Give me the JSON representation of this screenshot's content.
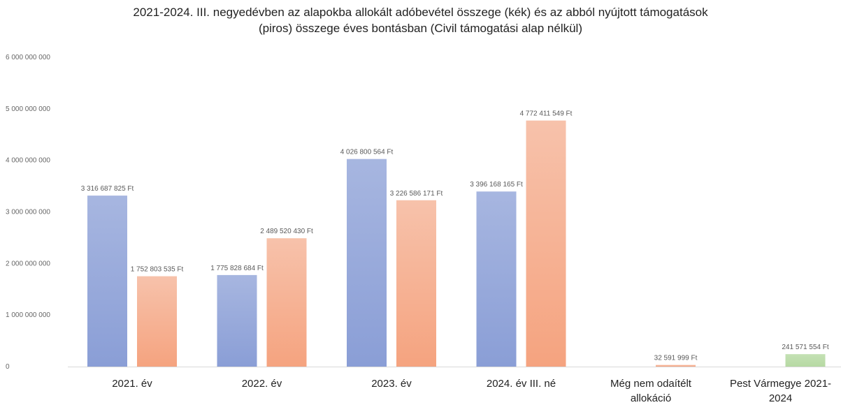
{
  "chart_data": {
    "type": "bar",
    "title_lines": [
      "2021-2024. III. negyedévben az alapokba allokált adóbevétel összege (kék) és az abból nyújtott támogatások",
      "(piros) összege éves bontásban (Civil támogatási alap nélkül)"
    ],
    "categories": [
      [
        "2021. év"
      ],
      [
        "2022. év"
      ],
      [
        "2023. év"
      ],
      [
        "2024. év III. né"
      ],
      [
        "Még nem odaítélt",
        "allokáció"
      ],
      [
        "Pest Vármegye 2021-",
        "2024"
      ]
    ],
    "ylim": [
      0,
      6000000000
    ],
    "yticks": [
      0,
      1000000000,
      2000000000,
      3000000000,
      4000000000,
      5000000000,
      6000000000
    ],
    "ytick_labels": [
      "0",
      "1 000 000 000",
      "2 000 000 000",
      "3 000 000 000",
      "4 000 000 000",
      "5 000 000 000",
      "6 000 000 000"
    ],
    "grid": false,
    "bars": [
      {
        "category": 0,
        "slot": "left",
        "color": "blue",
        "value": 3316687825,
        "label": "3 316 687 825 Ft"
      },
      {
        "category": 0,
        "slot": "right",
        "color": "orange",
        "value": 1752803535,
        "label": "1 752 803 535 Ft"
      },
      {
        "category": 1,
        "slot": "left",
        "color": "blue",
        "value": 1775828684,
        "label": "1 775 828 684 Ft"
      },
      {
        "category": 1,
        "slot": "right",
        "color": "orange",
        "value": 2489520430,
        "label": "2 489 520 430 Ft"
      },
      {
        "category": 2,
        "slot": "left",
        "color": "blue",
        "value": 4026800564,
        "label": "4 026 800 564 Ft"
      },
      {
        "category": 2,
        "slot": "right",
        "color": "orange",
        "value": 3226586171,
        "label": "3 226 586 171 Ft"
      },
      {
        "category": 3,
        "slot": "left",
        "color": "blue",
        "value": 3396168165,
        "label": "3 396 168 165 Ft"
      },
      {
        "category": 3,
        "slot": "right",
        "color": "orange",
        "value": 4772411549,
        "label": "4 772 411 549 Ft"
      },
      {
        "category": 4,
        "slot": "right",
        "color": "orange",
        "value": 32591999,
        "label": "32 591 999 Ft"
      },
      {
        "category": 5,
        "slot": "right",
        "color": "green",
        "value": 241571554,
        "label": "241 571 554 Ft"
      }
    ],
    "colors": {
      "blue_top": "#a7b6e0",
      "blue_bottom": "#8a9ed6",
      "orange_top": "#f7c2ab",
      "orange_bottom": "#f5a37f",
      "green_top": "#c4e1b4",
      "green_bottom": "#b6d9a3"
    }
  }
}
